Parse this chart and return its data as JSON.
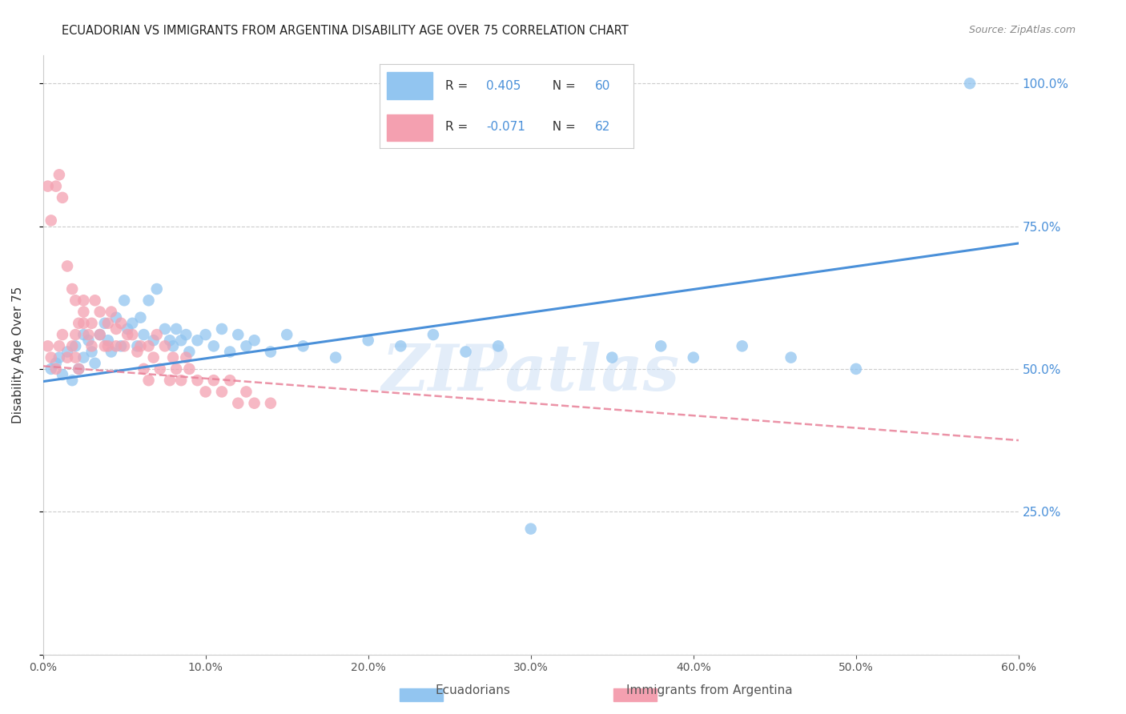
{
  "title": "ECUADORIAN VS IMMIGRANTS FROM ARGENTINA DISABILITY AGE OVER 75 CORRELATION CHART",
  "source": "Source: ZipAtlas.com",
  "xlabel_bottom_blue": "Ecuadorians",
  "xlabel_bottom_pink": "Immigrants from Argentina",
  "ylabel": "Disability Age Over 75",
  "xlim": [
    0.0,
    0.6
  ],
  "ylim": [
    0.0,
    1.05
  ],
  "yticks": [
    0.0,
    0.25,
    0.5,
    0.75,
    1.0
  ],
  "xticks": [
    0.0,
    0.1,
    0.2,
    0.3,
    0.4,
    0.5,
    0.6
  ],
  "right_ytick_positions": [
    1.0,
    0.75,
    0.5,
    0.25
  ],
  "blue_R": 0.405,
  "blue_N": 60,
  "pink_R": -0.071,
  "pink_N": 62,
  "blue_color": "#92C5F0",
  "pink_color": "#F4A0B0",
  "blue_line_color": "#4A90D9",
  "pink_line_color": "#E88098",
  "watermark": "ZIPatlas",
  "blue_scatter_x": [
    0.005,
    0.008,
    0.01,
    0.012,
    0.015,
    0.018,
    0.02,
    0.022,
    0.025,
    0.025,
    0.028,
    0.03,
    0.032,
    0.035,
    0.038,
    0.04,
    0.042,
    0.045,
    0.048,
    0.05,
    0.052,
    0.055,
    0.058,
    0.06,
    0.062,
    0.065,
    0.068,
    0.07,
    0.075,
    0.078,
    0.08,
    0.082,
    0.085,
    0.088,
    0.09,
    0.095,
    0.1,
    0.105,
    0.11,
    0.115,
    0.12,
    0.125,
    0.13,
    0.14,
    0.15,
    0.16,
    0.18,
    0.2,
    0.22,
    0.24,
    0.26,
    0.28,
    0.3,
    0.35,
    0.38,
    0.4,
    0.43,
    0.46,
    0.5,
    0.57
  ],
  "blue_scatter_y": [
    0.5,
    0.51,
    0.52,
    0.49,
    0.53,
    0.48,
    0.54,
    0.5,
    0.52,
    0.56,
    0.55,
    0.53,
    0.51,
    0.56,
    0.58,
    0.55,
    0.53,
    0.59,
    0.54,
    0.62,
    0.57,
    0.58,
    0.54,
    0.59,
    0.56,
    0.62,
    0.55,
    0.64,
    0.57,
    0.55,
    0.54,
    0.57,
    0.55,
    0.56,
    0.53,
    0.55,
    0.56,
    0.54,
    0.57,
    0.53,
    0.56,
    0.54,
    0.55,
    0.53,
    0.56,
    0.54,
    0.52,
    0.55,
    0.54,
    0.56,
    0.53,
    0.54,
    0.22,
    0.52,
    0.54,
    0.52,
    0.54,
    0.52,
    0.5,
    1.0
  ],
  "pink_scatter_x": [
    0.003,
    0.005,
    0.008,
    0.01,
    0.012,
    0.015,
    0.018,
    0.02,
    0.02,
    0.022,
    0.025,
    0.025,
    0.028,
    0.03,
    0.03,
    0.032,
    0.035,
    0.035,
    0.038,
    0.04,
    0.04,
    0.042,
    0.045,
    0.045,
    0.048,
    0.05,
    0.052,
    0.055,
    0.058,
    0.06,
    0.062,
    0.065,
    0.065,
    0.068,
    0.07,
    0.072,
    0.075,
    0.078,
    0.08,
    0.082,
    0.085,
    0.088,
    0.09,
    0.095,
    0.1,
    0.105,
    0.11,
    0.115,
    0.12,
    0.125,
    0.13,
    0.14,
    0.01,
    0.012,
    0.008,
    0.005,
    0.003,
    0.015,
    0.018,
    0.02,
    0.022,
    0.025
  ],
  "pink_scatter_y": [
    0.54,
    0.52,
    0.5,
    0.54,
    0.56,
    0.52,
    0.54,
    0.56,
    0.52,
    0.5,
    0.58,
    0.6,
    0.56,
    0.58,
    0.54,
    0.62,
    0.56,
    0.6,
    0.54,
    0.58,
    0.54,
    0.6,
    0.57,
    0.54,
    0.58,
    0.54,
    0.56,
    0.56,
    0.53,
    0.54,
    0.5,
    0.54,
    0.48,
    0.52,
    0.56,
    0.5,
    0.54,
    0.48,
    0.52,
    0.5,
    0.48,
    0.52,
    0.5,
    0.48,
    0.46,
    0.48,
    0.46,
    0.48,
    0.44,
    0.46,
    0.44,
    0.44,
    0.84,
    0.8,
    0.82,
    0.76,
    0.82,
    0.68,
    0.64,
    0.62,
    0.58,
    0.62
  ]
}
